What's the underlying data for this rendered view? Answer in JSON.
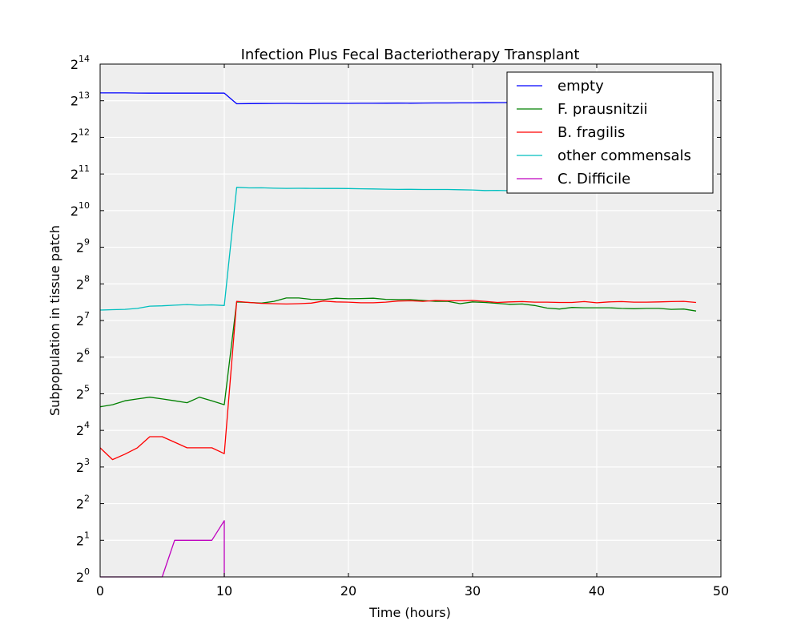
{
  "chart_data": {
    "type": "line",
    "title": "Infection Plus Fecal Bacteriotherapy Transplant",
    "xlabel": "Time (hours)",
    "ylabel": "Subpopulation in tissue patch",
    "xlim": [
      0,
      50
    ],
    "y_scale": "log2",
    "ylim": [
      1,
      16384
    ],
    "x_ticks": [
      0,
      10,
      20,
      30,
      40,
      50
    ],
    "y_tick_base": "2",
    "y_tick_exponents": [
      "0",
      "1",
      "2",
      "3",
      "4",
      "5",
      "6",
      "7",
      "8",
      "9",
      "10",
      "11",
      "12",
      "13",
      "14"
    ],
    "grid": true,
    "legend_position": "top-right",
    "series": [
      {
        "name": "empty",
        "color": "#0000ff",
        "points": [
          [
            0,
            9500
          ],
          [
            1,
            9500
          ],
          [
            2,
            9500
          ],
          [
            3,
            9480
          ],
          [
            4,
            9470
          ],
          [
            5,
            9470
          ],
          [
            6,
            9460
          ],
          [
            7,
            9460
          ],
          [
            8,
            9460
          ],
          [
            9,
            9460
          ],
          [
            10,
            9460
          ],
          [
            11,
            7740
          ],
          [
            12,
            7760
          ],
          [
            13,
            7770
          ],
          [
            14,
            7780
          ],
          [
            15,
            7790
          ],
          [
            16,
            7780
          ],
          [
            17,
            7780
          ],
          [
            18,
            7790
          ],
          [
            19,
            7790
          ],
          [
            20,
            7790
          ],
          [
            21,
            7800
          ],
          [
            22,
            7810
          ],
          [
            23,
            7820
          ],
          [
            24,
            7830
          ],
          [
            25,
            7820
          ],
          [
            26,
            7840
          ],
          [
            27,
            7850
          ],
          [
            28,
            7850
          ],
          [
            29,
            7860
          ],
          [
            30,
            7870
          ],
          [
            31,
            7890
          ],
          [
            32,
            7900
          ],
          [
            33,
            7910
          ],
          [
            34,
            7920
          ],
          [
            35,
            7930
          ],
          [
            36,
            7950
          ],
          [
            37,
            7960
          ],
          [
            38,
            7980
          ],
          [
            39,
            7990
          ],
          [
            40,
            8000
          ],
          [
            41,
            8010
          ],
          [
            42,
            8020
          ],
          [
            43,
            8030
          ],
          [
            44,
            8040
          ],
          [
            45,
            8050
          ],
          [
            46,
            8060
          ],
          [
            47,
            8070
          ],
          [
            48,
            8080
          ]
        ]
      },
      {
        "name": "F. prausnitzii",
        "color": "#008000",
        "points": [
          [
            0,
            25
          ],
          [
            1,
            26
          ],
          [
            2,
            28
          ],
          [
            3,
            29
          ],
          [
            4,
            30
          ],
          [
            5,
            29
          ],
          [
            6,
            28
          ],
          [
            7,
            27
          ],
          [
            8,
            30
          ],
          [
            9,
            28
          ],
          [
            10,
            26
          ],
          [
            11,
            182
          ],
          [
            12,
            180
          ],
          [
            13,
            178
          ],
          [
            14,
            184
          ],
          [
            15,
            196
          ],
          [
            16,
            196
          ],
          [
            17,
            191
          ],
          [
            18,
            190
          ],
          [
            19,
            195
          ],
          [
            20,
            193
          ],
          [
            21,
            194
          ],
          [
            22,
            195
          ],
          [
            23,
            191
          ],
          [
            24,
            190
          ],
          [
            25,
            190
          ],
          [
            26,
            187
          ],
          [
            27,
            184
          ],
          [
            28,
            184
          ],
          [
            29,
            176
          ],
          [
            30,
            182
          ],
          [
            31,
            180
          ],
          [
            32,
            177
          ],
          [
            33,
            174
          ],
          [
            34,
            175
          ],
          [
            35,
            170
          ],
          [
            36,
            162
          ],
          [
            37,
            159
          ],
          [
            38,
            164
          ],
          [
            39,
            163
          ],
          [
            40,
            163
          ],
          [
            41,
            163
          ],
          [
            42,
            161
          ],
          [
            43,
            160
          ],
          [
            44,
            161
          ],
          [
            45,
            161
          ],
          [
            46,
            158
          ],
          [
            47,
            159
          ],
          [
            48,
            153
          ]
        ]
      },
      {
        "name": "B. fragilis",
        "color": "#ff0000",
        "points": [
          [
            0,
            11.5
          ],
          [
            1,
            9.2
          ],
          [
            2,
            10.2
          ],
          [
            3,
            11.5
          ],
          [
            4,
            14.2
          ],
          [
            5,
            14.2
          ],
          [
            6,
            12.8
          ],
          [
            7,
            11.5
          ],
          [
            8,
            11.5
          ],
          [
            9,
            11.5
          ],
          [
            10,
            10.3
          ],
          [
            11,
            184
          ],
          [
            12,
            180
          ],
          [
            13,
            177
          ],
          [
            14,
            176
          ],
          [
            15,
            175
          ],
          [
            16,
            176
          ],
          [
            17,
            178
          ],
          [
            18,
            185
          ],
          [
            19,
            182
          ],
          [
            20,
            181
          ],
          [
            21,
            179
          ],
          [
            22,
            179
          ],
          [
            23,
            181
          ],
          [
            24,
            185
          ],
          [
            25,
            186
          ],
          [
            26,
            184
          ],
          [
            27,
            187
          ],
          [
            28,
            186
          ],
          [
            29,
            186
          ],
          [
            30,
            187
          ],
          [
            31,
            184
          ],
          [
            32,
            180
          ],
          [
            33,
            182
          ],
          [
            34,
            183
          ],
          [
            35,
            181
          ],
          [
            36,
            181
          ],
          [
            37,
            180
          ],
          [
            38,
            180
          ],
          [
            39,
            183
          ],
          [
            40,
            179
          ],
          [
            41,
            182
          ],
          [
            42,
            183
          ],
          [
            43,
            181
          ],
          [
            44,
            181
          ],
          [
            45,
            182
          ],
          [
            46,
            183
          ],
          [
            47,
            184
          ],
          [
            48,
            180
          ]
        ]
      },
      {
        "name": "other commensals",
        "color": "#00bfbf",
        "points": [
          [
            0,
            156
          ],
          [
            1,
            157
          ],
          [
            2,
            158
          ],
          [
            3,
            161
          ],
          [
            4,
            168
          ],
          [
            5,
            169
          ],
          [
            6,
            171
          ],
          [
            7,
            173
          ],
          [
            8,
            171
          ],
          [
            9,
            172
          ],
          [
            10,
            170
          ],
          [
            11,
            1590
          ],
          [
            12,
            1575
          ],
          [
            13,
            1576
          ],
          [
            14,
            1565
          ],
          [
            15,
            1560
          ],
          [
            16,
            1562
          ],
          [
            17,
            1560
          ],
          [
            18,
            1558
          ],
          [
            19,
            1558
          ],
          [
            20,
            1555
          ],
          [
            21,
            1548
          ],
          [
            22,
            1544
          ],
          [
            23,
            1536
          ],
          [
            24,
            1530
          ],
          [
            25,
            1532
          ],
          [
            26,
            1526
          ],
          [
            27,
            1526
          ],
          [
            28,
            1527
          ],
          [
            29,
            1520
          ],
          [
            30,
            1514
          ],
          [
            31,
            1498
          ],
          [
            32,
            1502
          ],
          [
            33,
            1492
          ],
          [
            34,
            1490
          ],
          [
            35,
            1484
          ],
          [
            36,
            1478
          ],
          [
            37,
            1474
          ],
          [
            38,
            1470
          ],
          [
            39,
            1466
          ],
          [
            40,
            1462
          ],
          [
            41,
            1458
          ],
          [
            42,
            1455
          ],
          [
            43,
            1452
          ],
          [
            44,
            1450
          ],
          [
            45,
            1448
          ],
          [
            46,
            1446
          ],
          [
            47,
            1444
          ],
          [
            48,
            1442
          ]
        ]
      },
      {
        "name": "C. Difficile",
        "color": "#bf00bf",
        "points": [
          [
            0,
            1
          ],
          [
            1,
            1
          ],
          [
            2,
            1
          ],
          [
            3,
            1
          ],
          [
            4,
            1
          ],
          [
            5,
            1
          ],
          [
            6,
            2
          ],
          [
            7,
            2
          ],
          [
            8,
            2
          ],
          [
            9,
            2
          ],
          [
            10,
            2.9
          ],
          [
            10,
            1
          ]
        ]
      }
    ]
  }
}
